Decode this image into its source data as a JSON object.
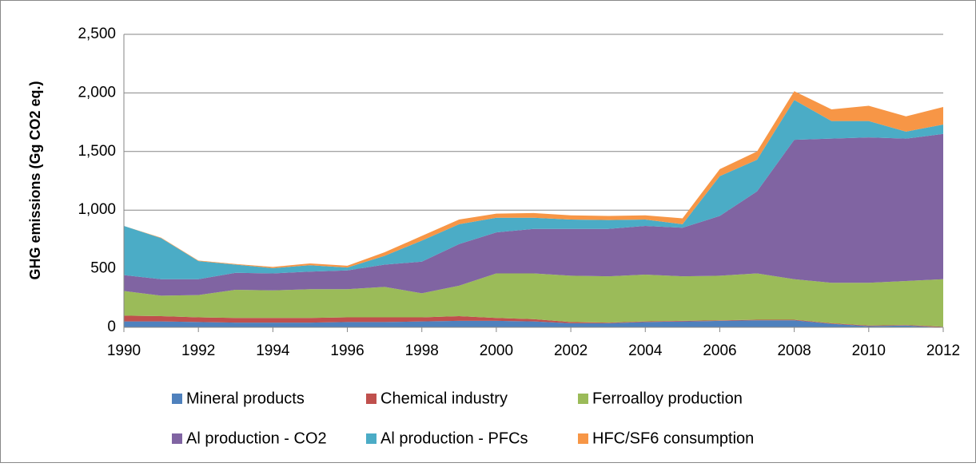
{
  "chart_data": {
    "type": "stacked_area",
    "ylabel": "GHG emissions (Gg CO2 eq.)",
    "x": [
      1990,
      1991,
      1992,
      1993,
      1994,
      1995,
      1996,
      1997,
      1998,
      1999,
      2000,
      2001,
      2002,
      2003,
      2004,
      2005,
      2006,
      2007,
      2008,
      2009,
      2010,
      2011,
      2012
    ],
    "xlim": [
      1990,
      2012
    ],
    "xticks": [
      1990,
      1992,
      1994,
      1996,
      1998,
      2000,
      2002,
      2004,
      2006,
      2008,
      2010,
      2012
    ],
    "ylim": [
      0,
      2500
    ],
    "yticks": [
      0,
      500,
      {
        "value": 1000,
        "label": "1,000"
      },
      {
        "value": 1500,
        "label": "1,500"
      },
      {
        "value": 2000,
        "label": "2,000"
      },
      {
        "value": 2500,
        "label": "2,500"
      }
    ],
    "grid": true,
    "legend": "bottom",
    "series": [
      {
        "name": "Mineral products",
        "color": "#4f81bd",
        "values": [
          50,
          50,
          45,
          40,
          40,
          40,
          45,
          45,
          50,
          55,
          55,
          50,
          35,
          35,
          45,
          50,
          55,
          60,
          60,
          30,
          10,
          15,
          0
        ]
      },
      {
        "name": "Chemical industry",
        "color": "#c0504d",
        "values": [
          50,
          45,
          40,
          40,
          40,
          40,
          40,
          40,
          35,
          40,
          25,
          20,
          10,
          5,
          5,
          5,
          5,
          5,
          5,
          5,
          5,
          5,
          5
        ]
      },
      {
        "name": "Ferroalloy production",
        "color": "#9bbb59",
        "values": [
          210,
          175,
          190,
          240,
          235,
          245,
          240,
          260,
          205,
          260,
          380,
          390,
          395,
          395,
          400,
          380,
          380,
          395,
          345,
          345,
          365,
          375,
          405
        ]
      },
      {
        "name": "Al production - CO2",
        "color": "#8064a2",
        "values": [
          135,
          140,
          135,
          145,
          145,
          150,
          160,
          190,
          270,
          355,
          350,
          380,
          400,
          405,
          415,
          415,
          510,
          700,
          1190,
          1230,
          1240,
          1215,
          1240
        ]
      },
      {
        "name": "Al production - PFCs",
        "color": "#4bacc6",
        "values": [
          420,
          350,
          155,
          70,
          45,
          55,
          25,
          75,
          180,
          170,
          125,
          95,
          80,
          75,
          55,
          30,
          340,
          270,
          340,
          150,
          140,
          60,
          80
        ]
      },
      {
        "name": "HFC/SF6 consumption",
        "color": "#f79646",
        "values": [
          0,
          5,
          5,
          5,
          10,
          15,
          15,
          30,
          40,
          40,
          35,
          40,
          35,
          35,
          35,
          50,
          60,
          70,
          75,
          100,
          130,
          130,
          150
        ]
      }
    ]
  }
}
